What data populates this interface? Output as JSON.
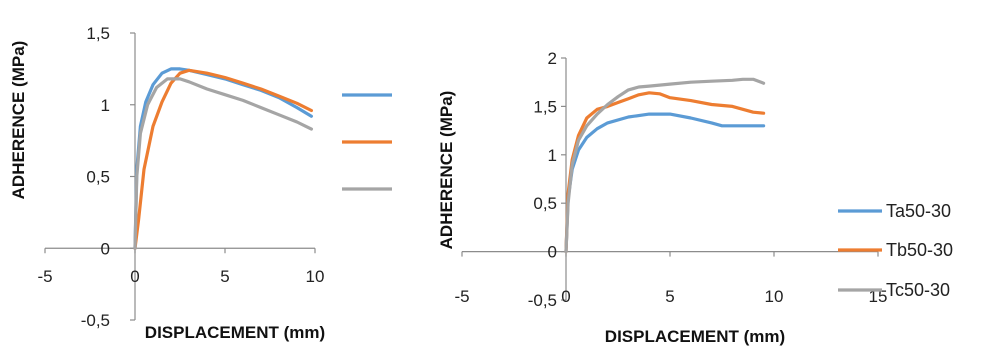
{
  "colors": {
    "Ta50-30": "#5b9bd5",
    "Tb50-30": "#ed7d31",
    "Tc50-30": "#a5a5a5"
  },
  "chart_data": [
    {
      "type": "line",
      "title": "",
      "xlabel": "DISPLACEMENT (mm)",
      "ylabel": "ADHERENCE (MPa)",
      "xlim": [
        -5,
        10
      ],
      "ylim": [
        -0.5,
        1.5
      ],
      "x_ticks": [
        "-5",
        "0",
        "5",
        "10"
      ],
      "y_ticks": [
        "1,5",
        "1",
        "0,5",
        "0",
        "-0,5"
      ],
      "legend": "right (labels cropped)",
      "grid": false,
      "series": [
        {
          "color": "#5b9bd5",
          "points": [
            [
              0,
              0
            ],
            [
              0.1,
              0.55
            ],
            [
              0.3,
              0.85
            ],
            [
              0.6,
              1.02
            ],
            [
              1.0,
              1.14
            ],
            [
              1.5,
              1.22
            ],
            [
              2.0,
              1.25
            ],
            [
              2.5,
              1.25
            ],
            [
              3.0,
              1.24
            ],
            [
              4.0,
              1.21
            ],
            [
              5.0,
              1.18
            ],
            [
              6.0,
              1.14
            ],
            [
              7.0,
              1.1
            ],
            [
              8.0,
              1.05
            ],
            [
              9.0,
              0.98
            ],
            [
              9.8,
              0.92
            ]
          ]
        },
        {
          "color": "#ed7d31",
          "points": [
            [
              0,
              0
            ],
            [
              0.2,
              0.2
            ],
            [
              0.5,
              0.55
            ],
            [
              1.0,
              0.85
            ],
            [
              1.5,
              1.02
            ],
            [
              2.0,
              1.15
            ],
            [
              2.5,
              1.22
            ],
            [
              3.0,
              1.24
            ],
            [
              4.0,
              1.22
            ],
            [
              5.0,
              1.19
            ],
            [
              6.0,
              1.15
            ],
            [
              7.0,
              1.11
            ],
            [
              8.0,
              1.06
            ],
            [
              9.0,
              1.01
            ],
            [
              9.8,
              0.96
            ]
          ]
        },
        {
          "color": "#a5a5a5",
          "points": [
            [
              0,
              0
            ],
            [
              0.1,
              0.5
            ],
            [
              0.3,
              0.8
            ],
            [
              0.7,
              1.0
            ],
            [
              1.2,
              1.12
            ],
            [
              1.8,
              1.18
            ],
            [
              2.5,
              1.18
            ],
            [
              3.0,
              1.16
            ],
            [
              4.0,
              1.11
            ],
            [
              5.0,
              1.07
            ],
            [
              6.0,
              1.03
            ],
            [
              7.0,
              0.98
            ],
            [
              8.0,
              0.93
            ],
            [
              9.0,
              0.88
            ],
            [
              9.8,
              0.83
            ]
          ]
        }
      ]
    },
    {
      "type": "line",
      "title": "",
      "xlabel": "DISPLACEMENT (mm)",
      "ylabel": "ADHERENCE  (MPa)",
      "xlim": [
        -5,
        15
      ],
      "ylim": [
        -0.5,
        2
      ],
      "x_ticks": [
        "-5",
        "0",
        "5",
        "10",
        "15"
      ],
      "y_ticks": [
        "2",
        "1,5",
        "1",
        "0,5",
        "0",
        "-0,5"
      ],
      "legend": "right",
      "grid": false,
      "series": [
        {
          "name": "Ta50-30",
          "color": "#5b9bd5",
          "points": [
            [
              0,
              0
            ],
            [
              0.1,
              0.55
            ],
            [
              0.3,
              0.85
            ],
            [
              0.6,
              1.05
            ],
            [
              1.0,
              1.18
            ],
            [
              1.5,
              1.27
            ],
            [
              2.0,
              1.33
            ],
            [
              3.0,
              1.39
            ],
            [
              4.0,
              1.42
            ],
            [
              5.0,
              1.42
            ],
            [
              6.0,
              1.38
            ],
            [
              7.0,
              1.33
            ],
            [
              7.5,
              1.3
            ],
            [
              8.0,
              1.3
            ],
            [
              9.0,
              1.3
            ],
            [
              9.5,
              1.3
            ]
          ]
        },
        {
          "name": "Tb50-30",
          "color": "#ed7d31",
          "points": [
            [
              0,
              0
            ],
            [
              0.1,
              0.6
            ],
            [
              0.3,
              0.95
            ],
            [
              0.6,
              1.2
            ],
            [
              1.0,
              1.38
            ],
            [
              1.5,
              1.47
            ],
            [
              2.0,
              1.5
            ],
            [
              2.5,
              1.54
            ],
            [
              3.0,
              1.58
            ],
            [
              3.5,
              1.62
            ],
            [
              4.0,
              1.64
            ],
            [
              4.5,
              1.63
            ],
            [
              5.0,
              1.59
            ],
            [
              6.0,
              1.56
            ],
            [
              7.0,
              1.52
            ],
            [
              8.0,
              1.5
            ],
            [
              9.0,
              1.44
            ],
            [
              9.5,
              1.43
            ]
          ]
        },
        {
          "name": "Tc50-30",
          "color": "#a5a5a5",
          "points": [
            [
              0,
              0
            ],
            [
              0.1,
              0.5
            ],
            [
              0.3,
              0.9
            ],
            [
              0.6,
              1.15
            ],
            [
              1.0,
              1.3
            ],
            [
              1.5,
              1.42
            ],
            [
              2.0,
              1.52
            ],
            [
              2.5,
              1.6
            ],
            [
              3.0,
              1.67
            ],
            [
              3.5,
              1.7
            ],
            [
              4.0,
              1.71
            ],
            [
              5.0,
              1.73
            ],
            [
              6.0,
              1.75
            ],
            [
              7.0,
              1.76
            ],
            [
              8.0,
              1.77
            ],
            [
              8.5,
              1.78
            ],
            [
              9.0,
              1.78
            ],
            [
              9.5,
              1.74
            ]
          ]
        }
      ]
    }
  ]
}
